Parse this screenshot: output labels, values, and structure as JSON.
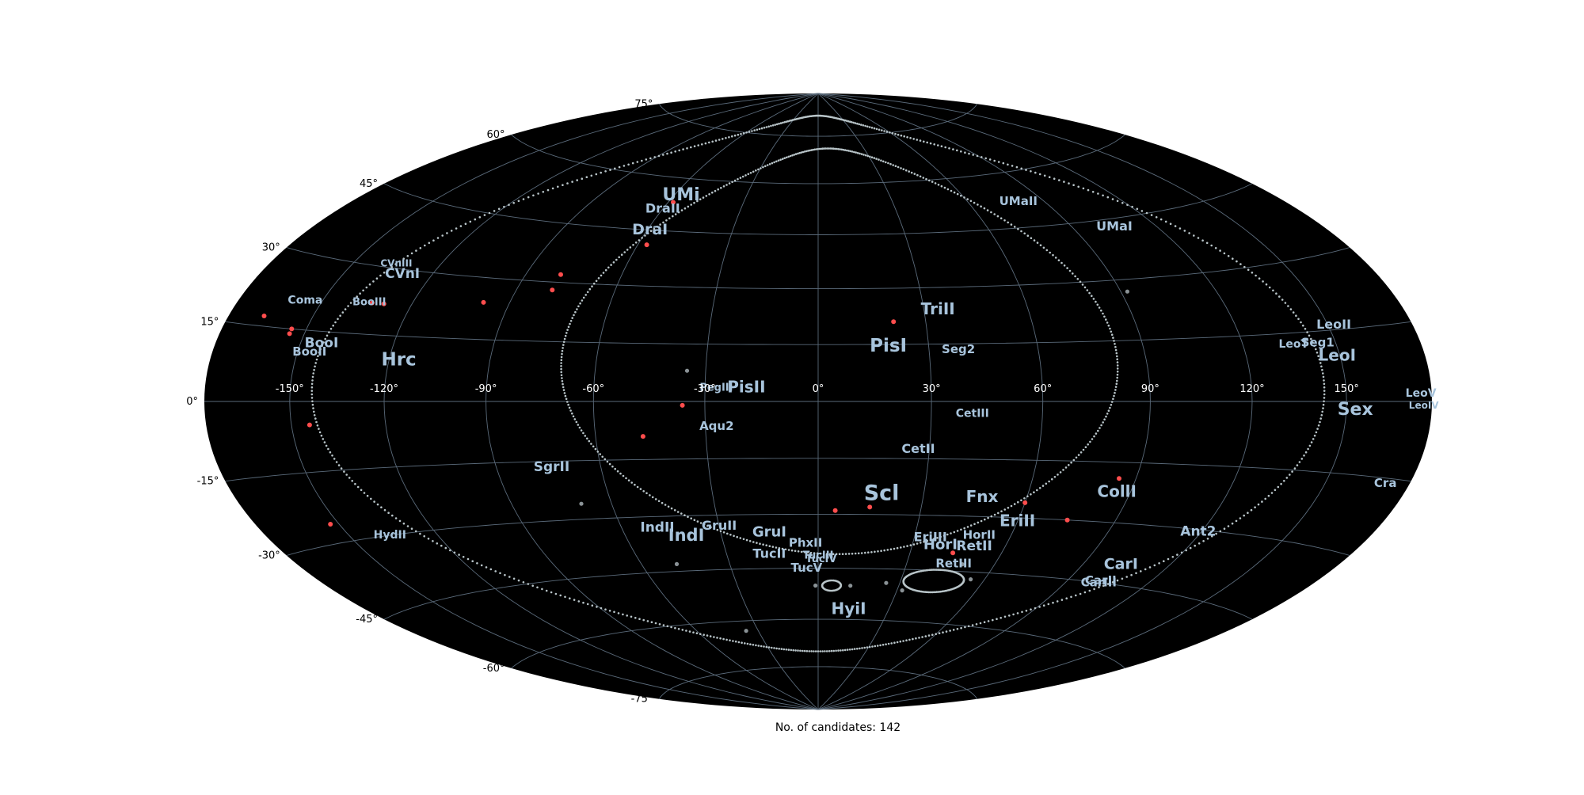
{
  "map": {
    "projection": "aitoff-hammer",
    "background": "#000000",
    "grid_color": "#5a6a7a",
    "label_color": "#a8c4dc",
    "candidate_color": "#ff4d4d",
    "track_color": "#b8c4c8",
    "lon_ticks": [
      "-150°",
      "-120°",
      "-90°",
      "-60°",
      "-30°",
      "0°",
      "30°",
      "60°",
      "90°",
      "120°",
      "150°"
    ],
    "lat_ticks": [
      "75°",
      "60°",
      "45°",
      "30°",
      "15°",
      "0°",
      "-15°",
      "-30°",
      "-45°",
      "-60°",
      "-75°"
    ],
    "caption": "No. of candidates: 142"
  },
  "chart_data": {
    "type": "scatter",
    "candidates": [
      {
        "lon": -58,
        "lat": 53
      },
      {
        "lon": -57,
        "lat": 41
      },
      {
        "lon": -79,
        "lat": 32
      },
      {
        "lon": -79,
        "lat": 28
      },
      {
        "lon": -98,
        "lat": 24
      },
      {
        "lon": -133,
        "lat": 22
      },
      {
        "lon": -129,
        "lat": 22
      },
      {
        "lon": -167,
        "lat": 17
      },
      {
        "lon": -155,
        "lat": 15
      },
      {
        "lon": -155,
        "lat": 14
      },
      {
        "lon": -36,
        "lat": -1
      },
      {
        "lon": -47,
        "lat": -9
      },
      {
        "lon": -144,
        "lat": -5
      },
      {
        "lon": -153,
        "lat": -26
      },
      {
        "lon": 21,
        "lat": 21
      },
      {
        "lon": 60,
        "lat": -26
      },
      {
        "lon": 85,
        "lat": -19
      },
      {
        "lon": 75,
        "lat": -30
      },
      {
        "lon": 15,
        "lat": -28
      },
      {
        "lon": 5,
        "lat": -29
      },
      {
        "lon": 44,
        "lat": -40
      }
    ],
    "grey_points": [
      {
        "lon": -35,
        "lat": 8
      },
      {
        "lon": -69,
        "lat": -26
      },
      {
        "lon": -48,
        "lat": -43
      },
      {
        "lon": 92,
        "lat": 27
      },
      {
        "lon": 49,
        "lat": -43
      },
      {
        "lon": 55,
        "lat": -47
      },
      {
        "lon": 25,
        "lat": -49
      },
      {
        "lon": 32,
        "lat": -51
      },
      {
        "lon": -1,
        "lat": -50
      },
      {
        "lon": 12,
        "lat": -50
      },
      {
        "lon": -36,
        "lat": -63
      }
    ],
    "lmc": {
      "lon": 42,
      "lat": -48,
      "rlon": 11,
      "rlat": 3.2
    },
    "smc": {
      "lon": 5,
      "lat": -50,
      "rlon": 3.5,
      "rlat": 1.5
    },
    "tracks": [
      {
        "lon0": 6,
        "lat0": 15,
        "rlon": 76,
        "rlat": 56,
        "dots": 460
      },
      {
        "lon0": 0,
        "lat0": 6,
        "rlon": 143,
        "rlat": 76,
        "dots": 640
      }
    ],
    "labels": [
      {
        "text": "UMi",
        "lon": -57,
        "lat": 55,
        "size": 22
      },
      {
        "text": "DraII",
        "lon": -60,
        "lat": 51,
        "size": 16
      },
      {
        "text": "DraI",
        "lon": -59,
        "lat": 45,
        "size": 19
      },
      {
        "text": "UMaII",
        "lon": 80,
        "lat": 52,
        "size": 15
      },
      {
        "text": "UMaI",
        "lon": 105,
        "lat": 43,
        "size": 16
      },
      {
        "text": "CVnIII",
        "lon": -135,
        "lat": 31,
        "size": 12
      },
      {
        "text": "CVnI",
        "lon": -130,
        "lat": 29,
        "size": 17
      },
      {
        "text": "BooIII",
        "lon": -134,
        "lat": 22,
        "size": 13
      },
      {
        "text": "Coma",
        "lon": -156,
        "lat": 21,
        "size": 14
      },
      {
        "text": "BooI",
        "lon": -143,
        "lat": 12.5,
        "size": 17
      },
      {
        "text": "BooII",
        "lon": -146,
        "lat": 10.5,
        "size": 15
      },
      {
        "text": "Hrc",
        "lon": -117,
        "lat": 9.5,
        "size": 23
      },
      {
        "text": "TriII",
        "lon": 34,
        "lat": 24,
        "size": 20
      },
      {
        "text": "PisI",
        "lon": 19,
        "lat": 14.5,
        "size": 23
      },
      {
        "text": "Seg2",
        "lon": 38,
        "lat": 13.5,
        "size": 15
      },
      {
        "text": "PegIII",
        "lon": -27,
        "lat": 3.5,
        "size": 13
      },
      {
        "text": "PisII",
        "lon": -19,
        "lat": 3.5,
        "size": 20
      },
      {
        "text": "LeoII",
        "lon": 152,
        "lat": 16,
        "size": 16
      },
      {
        "text": "LeoT",
        "lon": 136,
        "lat": 12.5,
        "size": 14
      },
      {
        "text": "Seg1",
        "lon": 144,
        "lat": 12.5,
        "size": 15
      },
      {
        "text": "LeoI",
        "lon": 149,
        "lat": 9.5,
        "size": 20
      },
      {
        "text": "LeoV",
        "lon": 176,
        "lat": 1.5,
        "size": 14
      },
      {
        "text": "LeoIV",
        "lon": 177,
        "lat": -0.8,
        "size": 12
      },
      {
        "text": "Sex",
        "lon": 153,
        "lat": -1.8,
        "size": 22
      },
      {
        "text": "CetIII",
        "lon": 41,
        "lat": -3.2,
        "size": 14
      },
      {
        "text": "Aqu2",
        "lon": -27,
        "lat": -6.5,
        "size": 15
      },
      {
        "text": "CetII",
        "lon": 27,
        "lat": -12.5,
        "size": 16
      },
      {
        "text": "SgrII",
        "lon": -74,
        "lat": -16.5,
        "size": 17
      },
      {
        "text": "Cra",
        "lon": 171,
        "lat": -16,
        "size": 15
      },
      {
        "text": "HydII",
        "lon": -136,
        "lat": -30,
        "size": 14
      },
      {
        "text": "Scl",
        "lon": 18,
        "lat": -24.5,
        "size": 27
      },
      {
        "text": "Fnx",
        "lon": 47,
        "lat": -25,
        "size": 20
      },
      {
        "text": "CollI",
        "lon": 86,
        "lat": -22.5,
        "size": 20
      },
      {
        "text": "EriII",
        "lon": 60,
        "lat": -31,
        "size": 20
      },
      {
        "text": "Ant2",
        "lon": 119,
        "lat": -30.5,
        "size": 17
      },
      {
        "text": "IndII",
        "lon": -49,
        "lat": -33,
        "size": 17
      },
      {
        "text": "GruII",
        "lon": -30,
        "lat": -33,
        "size": 16
      },
      {
        "text": "IndI",
        "lon": -41,
        "lat": -35.5,
        "size": 21
      },
      {
        "text": "GruI",
        "lon": -15,
        "lat": -35,
        "size": 18
      },
      {
        "text": "PhxII",
        "lon": -4,
        "lat": -38,
        "size": 15
      },
      {
        "text": "EriIII",
        "lon": 35,
        "lat": -36,
        "size": 16
      },
      {
        "text": "HorII",
        "lon": 50,
        "lat": -35,
        "size": 15
      },
      {
        "text": "HorI",
        "lon": 39,
        "lat": -38,
        "size": 18
      },
      {
        "text": "RetII",
        "lon": 50,
        "lat": -38,
        "size": 17
      },
      {
        "text": "TucII",
        "lon": -16,
        "lat": -41,
        "size": 16
      },
      {
        "text": "TucIII",
        "lon": 0,
        "lat": -41.5,
        "size": 13
      },
      {
        "text": "TucIV",
        "lon": 1,
        "lat": -42.5,
        "size": 13
      },
      {
        "text": "TucV",
        "lon": -4,
        "lat": -45,
        "size": 15
      },
      {
        "text": "RetIII",
        "lon": 46,
        "lat": -43,
        "size": 15
      },
      {
        "text": "CarI",
        "lon": 103,
        "lat": -40,
        "size": 19
      },
      {
        "text": "CarII",
        "lon": 102,
        "lat": -44.5,
        "size": 15
      },
      {
        "text": "CarIII",
        "lon": 102,
        "lat": -45,
        "size": 15
      },
      {
        "text": "HyiI",
        "lon": 13,
        "lat": -57,
        "size": 20
      }
    ]
  }
}
